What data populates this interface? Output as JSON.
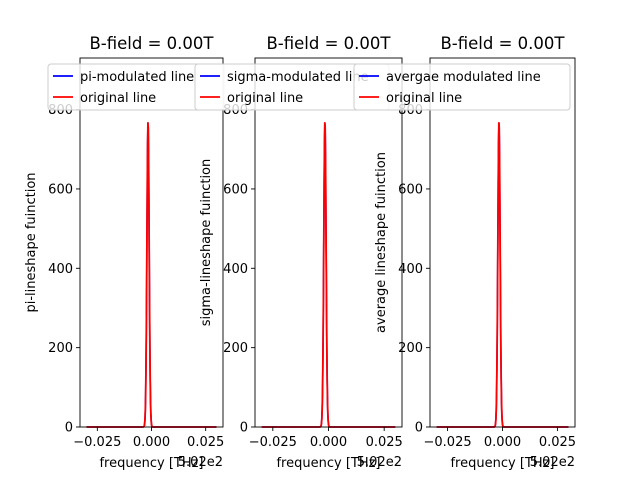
{
  "chart_data": [
    {
      "type": "line",
      "title": "B-field = 0.00T",
      "xlabel": "frequency [THz]",
      "ylabel": "pi-lineshape fuinction",
      "x_offset_text": "5.02e2",
      "xlim": [
        -0.033,
        0.033
      ],
      "ylim": [
        0,
        930
      ],
      "x_ticks": [
        -0.025,
        0.0,
        0.025
      ],
      "x_tick_labels": [
        "−0.025",
        "0.000",
        "0.025"
      ],
      "y_ticks": [
        0,
        200,
        400,
        600,
        800
      ],
      "y_tick_labels": [
        "0",
        "200",
        "400",
        "600",
        "800"
      ],
      "grid": false,
      "legend_position": "top",
      "peak": {
        "center": -0.0016,
        "height": 770,
        "sigma": 0.00052
      },
      "series": [
        {
          "name": "pi-modulated line",
          "color": "#0000ff"
        },
        {
          "name": "original line",
          "color": "#ff0000"
        }
      ]
    },
    {
      "type": "line",
      "title": "B-field = 0.00T",
      "xlabel": "frequency [THz]",
      "ylabel": "sigma-lineshape fuinction",
      "x_offset_text": "5.02e2",
      "xlim": [
        -0.033,
        0.033
      ],
      "ylim": [
        0,
        930
      ],
      "x_ticks": [
        -0.025,
        0.0,
        0.025
      ],
      "x_tick_labels": [
        "−0.025",
        "0.000",
        "0.025"
      ],
      "y_ticks": [
        0,
        200,
        400,
        600,
        800
      ],
      "y_tick_labels": [
        "0",
        "200",
        "400",
        "600",
        "800"
      ],
      "grid": false,
      "legend_position": "top",
      "peak": {
        "center": -0.0016,
        "height": 770,
        "sigma": 0.00052
      },
      "series": [
        {
          "name": "sigma-modulated line",
          "color": "#0000ff"
        },
        {
          "name": "original line",
          "color": "#ff0000"
        }
      ]
    },
    {
      "type": "line",
      "title": "B-field = 0.00T",
      "xlabel": "frequency [THz]",
      "ylabel": "average lineshape fuinction",
      "x_offset_text": "5.02e2",
      "xlim": [
        -0.033,
        0.033
      ],
      "ylim": [
        0,
        930
      ],
      "x_ticks": [
        -0.025,
        0.0,
        0.025
      ],
      "x_tick_labels": [
        "−0.025",
        "0.000",
        "0.025"
      ],
      "y_ticks": [
        0,
        200,
        400,
        600,
        800
      ],
      "y_tick_labels": [
        "0",
        "200",
        "400",
        "600",
        "800"
      ],
      "grid": false,
      "legend_position": "top",
      "peak": {
        "center": -0.0016,
        "height": 770,
        "sigma": 0.00052
      },
      "series": [
        {
          "name": "avergae modulated line",
          "color": "#0000ff"
        },
        {
          "name": "original line",
          "color": "#ff0000"
        }
      ]
    }
  ]
}
